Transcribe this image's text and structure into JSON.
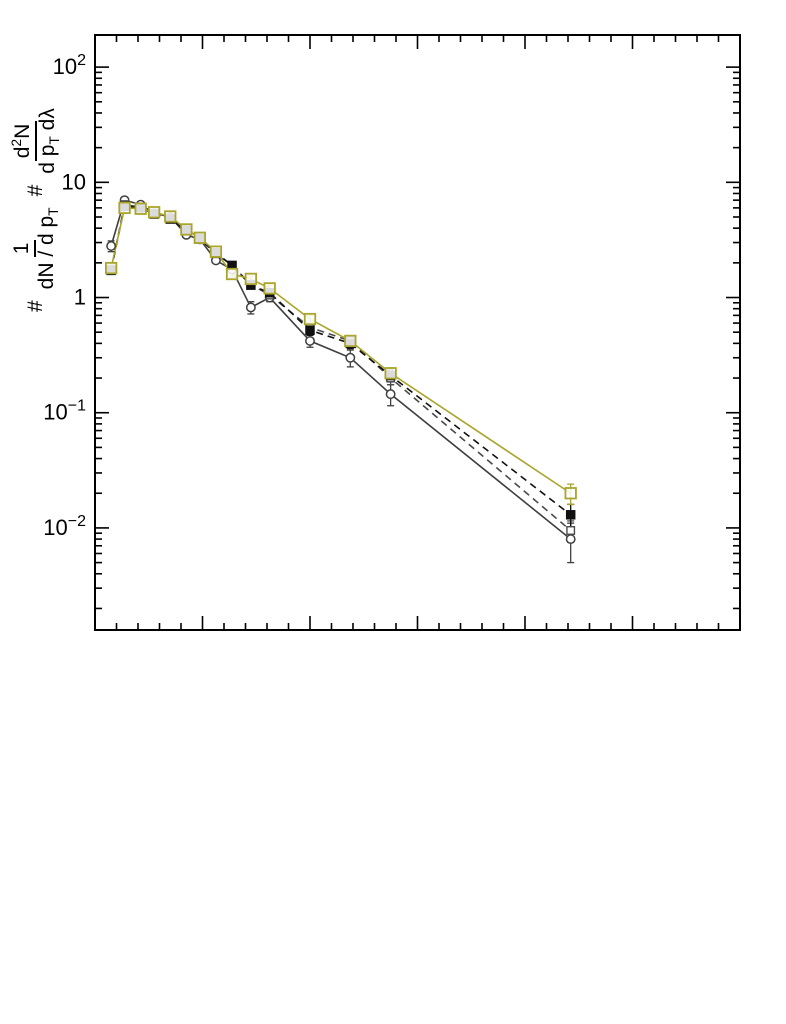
{
  "figure": {
    "background": "#ffffff",
    "frame_color": "#000000"
  },
  "yaxis": {
    "scale": "log",
    "title": {
      "hash1": "#",
      "frac1_num": "1",
      "frac1_den_main": "dN / d p",
      "frac1_den_sub": "T",
      "hash2": "#",
      "frac2_num_main": "d",
      "frac2_num_sup": "2",
      "frac2_num_rest": "N",
      "frac2_den_main": "d p",
      "frac2_den_sub": "T",
      "frac2_den_rest": " dλ"
    },
    "tick_labels": [
      {
        "v": 100,
        "base": "10",
        "exp": "2"
      },
      {
        "v": 10,
        "base": "10",
        "exp": ""
      },
      {
        "v": 1,
        "base": "1",
        "exp": ""
      },
      {
        "v": 0.1,
        "base": "10",
        "exp": "−1"
      },
      {
        "v": 0.01,
        "base": "10",
        "exp": "−2"
      }
    ]
  },
  "xaxis": {
    "labels_visible": false,
    "major_step": 2,
    "minor_step": 0.4
  },
  "chart_data": {
    "type": "line",
    "title": "",
    "xlabel": "",
    "ylabel": "# 1/(dN/dp_T) # d2N/(dp_T dlambda)",
    "grid": false,
    "legend": false,
    "xlim": [
      0,
      12
    ],
    "ylim": [
      0.0013,
      190
    ],
    "x": [
      0.3,
      0.55,
      0.85,
      1.1,
      1.4,
      1.7,
      1.95,
      2.25,
      2.55,
      2.9,
      3.25,
      4.0,
      4.75,
      5.5,
      8.85
    ],
    "series": [
      {
        "name": "open-circles",
        "marker": "circle-open",
        "color": "#3f3f3f",
        "line": "solid",
        "values": [
          2.8,
          7.0,
          6.4,
          5.4,
          5.0,
          3.5,
          3.2,
          2.1,
          1.75,
          0.82,
          1.0,
          0.42,
          0.3,
          0.145,
          0.008
        ],
        "errors": [
          0.3,
          0.35,
          0.3,
          0.27,
          0.25,
          0.18,
          0.16,
          0.12,
          0.1,
          0.1,
          0.08,
          0.05,
          0.05,
          0.03,
          0.003
        ]
      },
      {
        "name": "open-squares",
        "marker": "square-open",
        "color": "#4a4a4a",
        "line": "dashed",
        "values": [
          1.75,
          6.4,
          6.1,
          5.4,
          4.9,
          3.8,
          3.2,
          2.4,
          1.9,
          1.3,
          1.05,
          0.55,
          0.42,
          0.2,
          0.0095
        ],
        "errors": [
          0.12,
          0.3,
          0.28,
          0.25,
          0.23,
          0.17,
          0.15,
          0.11,
          0.09,
          0.08,
          0.07,
          0.05,
          0.04,
          0.025,
          0.002
        ]
      },
      {
        "name": "filled-squares",
        "marker": "square-filled",
        "color": "#111111",
        "line": "dashed",
        "values": [
          1.72,
          6.2,
          6.0,
          5.3,
          4.8,
          3.85,
          3.25,
          2.45,
          1.9,
          1.28,
          1.1,
          0.52,
          0.4,
          0.21,
          0.013
        ],
        "errors": [
          0.12,
          0.3,
          0.28,
          0.25,
          0.22,
          0.17,
          0.15,
          0.11,
          0.09,
          0.08,
          0.07,
          0.05,
          0.04,
          0.025,
          0.003
        ]
      },
      {
        "name": "olive-open-squares",
        "marker": "square-open-large",
        "color": "#a9a52c",
        "line": "solid",
        "values": [
          1.8,
          6.0,
          5.9,
          5.5,
          5.05,
          3.9,
          3.3,
          2.5,
          1.6,
          1.45,
          1.2,
          0.65,
          0.42,
          0.22,
          0.02
        ],
        "errors": [
          0.13,
          0.3,
          0.28,
          0.25,
          0.23,
          0.18,
          0.15,
          0.12,
          0.1,
          0.09,
          0.08,
          0.05,
          0.04,
          0.025,
          0.004
        ]
      }
    ]
  }
}
